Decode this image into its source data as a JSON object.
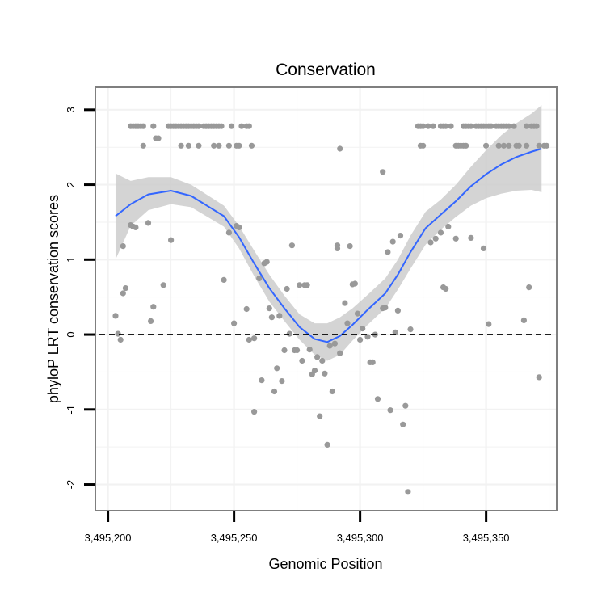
{
  "chart_data": {
    "type": "scatter",
    "title": "Conservation",
    "xlabel": "Genomic Position",
    "ylabel": "phyloP LRT conservation scores",
    "xlim": [
      3495195,
      3495378
    ],
    "ylim": [
      -2.35,
      3.3
    ],
    "x_ticks": [
      3495200,
      3495250,
      3495300,
      3495350
    ],
    "x_tick_labels": [
      "3,495,200",
      "3,495,250",
      "3,495,300",
      "3,495,350"
    ],
    "y_ticks": [
      -2,
      -1,
      0,
      1,
      2,
      3
    ],
    "y_tick_labels": [
      "-2",
      "-1",
      "0",
      "1",
      "2",
      "3"
    ],
    "reference_line": {
      "y": 0,
      "style": "dashed",
      "color": "#000000"
    },
    "grid": true,
    "colors": {
      "points": "#999999",
      "smooth": "#3366ff",
      "band": "#cccccc",
      "panel_border": "#7f7f7f",
      "grid": "#f2f2f2"
    },
    "points": [
      [
        3495209,
        2.78
      ],
      [
        3495210,
        2.78
      ],
      [
        3495211,
        2.78
      ],
      [
        3495212,
        2.78
      ],
      [
        3495213,
        2.78
      ],
      [
        3495214,
        2.78
      ],
      [
        3495218,
        2.78
      ],
      [
        3495224,
        2.78
      ],
      [
        3495225,
        2.78
      ],
      [
        3495226,
        2.78
      ],
      [
        3495227,
        2.78
      ],
      [
        3495228,
        2.78
      ],
      [
        3495229,
        2.78
      ],
      [
        3495230,
        2.78
      ],
      [
        3495231,
        2.78
      ],
      [
        3495232,
        2.78
      ],
      [
        3495233,
        2.78
      ],
      [
        3495234,
        2.78
      ],
      [
        3495235,
        2.78
      ],
      [
        3495236,
        2.78
      ],
      [
        3495238,
        2.78
      ],
      [
        3495239,
        2.78
      ],
      [
        3495240,
        2.78
      ],
      [
        3495241,
        2.78
      ],
      [
        3495242,
        2.78
      ],
      [
        3495243,
        2.78
      ],
      [
        3495244,
        2.78
      ],
      [
        3495245,
        2.78
      ],
      [
        3495249,
        2.78
      ],
      [
        3495253,
        2.78
      ],
      [
        3495255,
        2.78
      ],
      [
        3495256,
        2.78
      ],
      [
        3495214,
        2.52
      ],
      [
        3495229,
        2.52
      ],
      [
        3495232,
        2.52
      ],
      [
        3495236,
        2.52
      ],
      [
        3495242,
        2.52
      ],
      [
        3495244,
        2.52
      ],
      [
        3495248,
        2.52
      ],
      [
        3495251,
        2.52
      ],
      [
        3495252,
        2.52
      ],
      [
        3495257,
        2.52
      ],
      [
        3495219,
        2.62
      ],
      [
        3495220,
        2.62
      ],
      [
        3495323,
        2.78
      ],
      [
        3495324,
        2.78
      ],
      [
        3495325,
        2.78
      ],
      [
        3495327,
        2.78
      ],
      [
        3495329,
        2.78
      ],
      [
        3495332,
        2.78
      ],
      [
        3495333,
        2.78
      ],
      [
        3495334,
        2.78
      ],
      [
        3495336,
        2.78
      ],
      [
        3495341,
        2.78
      ],
      [
        3495342,
        2.78
      ],
      [
        3495343,
        2.78
      ],
      [
        3495344,
        2.78
      ],
      [
        3495346,
        2.78
      ],
      [
        3495347,
        2.78
      ],
      [
        3495348,
        2.78
      ],
      [
        3495349,
        2.78
      ],
      [
        3495350,
        2.78
      ],
      [
        3495351,
        2.78
      ],
      [
        3495352,
        2.78
      ],
      [
        3495354,
        2.78
      ],
      [
        3495355,
        2.78
      ],
      [
        3495356,
        2.78
      ],
      [
        3495357,
        2.78
      ],
      [
        3495358,
        2.78
      ],
      [
        3495359,
        2.78
      ],
      [
        3495361,
        2.78
      ],
      [
        3495366,
        2.78
      ],
      [
        3495368,
        2.78
      ],
      [
        3495369,
        2.78
      ],
      [
        3495370,
        2.78
      ],
      [
        3495324,
        2.52
      ],
      [
        3495325,
        2.52
      ],
      [
        3495338,
        2.52
      ],
      [
        3495339,
        2.52
      ],
      [
        3495340,
        2.52
      ],
      [
        3495341,
        2.52
      ],
      [
        3495342,
        2.52
      ],
      [
        3495350,
        2.52
      ],
      [
        3495355,
        2.52
      ],
      [
        3495357,
        2.52
      ],
      [
        3495359,
        2.52
      ],
      [
        3495362,
        2.52
      ],
      [
        3495363,
        2.52
      ],
      [
        3495366,
        2.52
      ],
      [
        3495371,
        2.52
      ],
      [
        3495373,
        2.52
      ],
      [
        3495374,
        2.52
      ],
      [
        3495292,
        2.48
      ],
      [
        3495309,
        2.17
      ],
      [
        3495206,
        1.18
      ],
      [
        3495209,
        1.46
      ],
      [
        3495210,
        1.44
      ],
      [
        3495211,
        1.43
      ],
      [
        3495216,
        1.49
      ],
      [
        3495222,
        0.66
      ],
      [
        3495225,
        1.26
      ],
      [
        3495206,
        0.55
      ],
      [
        3495207,
        0.62
      ],
      [
        3495218,
        0.37
      ],
      [
        3495217,
        0.18
      ],
      [
        3495203,
        0.25
      ],
      [
        3495204,
        0.01
      ],
      [
        3495205,
        -0.07
      ],
      [
        3495246,
        0.73
      ],
      [
        3495248,
        1.36
      ],
      [
        3495250,
        0.15
      ],
      [
        3495251,
        1.45
      ],
      [
        3495252,
        1.43
      ],
      [
        3495255,
        0.34
      ],
      [
        3495258,
        -0.05
      ],
      [
        3495260,
        0.75
      ],
      [
        3495261,
        -0.61
      ],
      [
        3495262,
        0.95
      ],
      [
        3495263,
        0.97
      ],
      [
        3495264,
        0.35
      ],
      [
        3495265,
        0.23
      ],
      [
        3495266,
        -0.76
      ],
      [
        3495267,
        -0.45
      ],
      [
        3495268,
        0.25
      ],
      [
        3495269,
        -0.62
      ],
      [
        3495270,
        -0.21
      ],
      [
        3495271,
        0.61
      ],
      [
        3495272,
        0.01
      ],
      [
        3495273,
        1.19
      ],
      [
        3495274,
        -0.21
      ],
      [
        3495275,
        -0.21
      ],
      [
        3495276,
        0.66
      ],
      [
        3495277,
        -0.35
      ],
      [
        3495278,
        0.66
      ],
      [
        3495279,
        0.66
      ],
      [
        3495280,
        -0.2
      ],
      [
        3495281,
        -0.53
      ],
      [
        3495282,
        -0.48
      ],
      [
        3495283,
        -0.3
      ],
      [
        3495284,
        -1.09
      ],
      [
        3495285,
        -0.35
      ],
      [
        3495286,
        -0.52
      ],
      [
        3495287,
        -1.47
      ],
      [
        3495288,
        -0.15
      ],
      [
        3495289,
        -0.76
      ],
      [
        3495290,
        -0.12
      ],
      [
        3495291,
        1.19
      ],
      [
        3495291,
        1.15
      ],
      [
        3495292,
        -0.25
      ],
      [
        3495294,
        0.42
      ],
      [
        3495295,
        0.15
      ],
      [
        3495296,
        1.18
      ],
      [
        3495297,
        0.67
      ],
      [
        3495298,
        0.68
      ],
      [
        3495299,
        0.28
      ],
      [
        3495300,
        -0.07
      ],
      [
        3495301,
        0.08
      ],
      [
        3495303,
        -0.03
      ],
      [
        3495304,
        -0.37
      ],
      [
        3495305,
        -0.37
      ],
      [
        3495306,
        0.0
      ],
      [
        3495307,
        -0.86
      ],
      [
        3495309,
        0.35
      ],
      [
        3495310,
        0.36
      ],
      [
        3495311,
        1.1
      ],
      [
        3495312,
        -1.01
      ],
      [
        3495313,
        1.24
      ],
      [
        3495314,
        0.03
      ],
      [
        3495315,
        0.32
      ],
      [
        3495316,
        1.32
      ],
      [
        3495317,
        -1.2
      ],
      [
        3495318,
        -0.95
      ],
      [
        3495319,
        -2.1
      ],
      [
        3495320,
        0.07
      ],
      [
        3495258,
        -1.03
      ],
      [
        3495256,
        -0.07
      ],
      [
        3495328,
        1.23
      ],
      [
        3495330,
        1.28
      ],
      [
        3495332,
        1.36
      ],
      [
        3495333,
        0.63
      ],
      [
        3495334,
        0.61
      ],
      [
        3495335,
        1.44
      ],
      [
        3495338,
        1.28
      ],
      [
        3495344,
        1.29
      ],
      [
        3495349,
        1.15
      ],
      [
        3495351,
        0.14
      ],
      [
        3495365,
        0.19
      ],
      [
        3495367,
        0.63
      ],
      [
        3495371,
        -0.57
      ]
    ],
    "smooth_fit": [
      [
        3495203,
        1.58
      ],
      [
        3495209,
        1.74
      ],
      [
        3495216,
        1.87
      ],
      [
        3495225,
        1.92
      ],
      [
        3495233,
        1.85
      ],
      [
        3495246,
        1.58
      ],
      [
        3495252,
        1.3
      ],
      [
        3495258,
        0.95
      ],
      [
        3495264,
        0.62
      ],
      [
        3495270,
        0.35
      ],
      [
        3495276,
        0.1
      ],
      [
        3495282,
        -0.06
      ],
      [
        3495287,
        -0.1
      ],
      [
        3495292,
        -0.02
      ],
      [
        3495297,
        0.13
      ],
      [
        3495303,
        0.33
      ],
      [
        3495310,
        0.55
      ],
      [
        3495315,
        0.8
      ],
      [
        3495320,
        1.1
      ],
      [
        3495326,
        1.42
      ],
      [
        3495332,
        1.6
      ],
      [
        3495338,
        1.78
      ],
      [
        3495344,
        1.98
      ],
      [
        3495350,
        2.14
      ],
      [
        3495356,
        2.27
      ],
      [
        3495362,
        2.37
      ],
      [
        3495368,
        2.44
      ],
      [
        3495372,
        2.48
      ]
    ],
    "smooth_lower": [
      [
        3495203,
        1.0
      ],
      [
        3495209,
        1.45
      ],
      [
        3495216,
        1.66
      ],
      [
        3495225,
        1.74
      ],
      [
        3495233,
        1.7
      ],
      [
        3495246,
        1.44
      ],
      [
        3495252,
        1.15
      ],
      [
        3495258,
        0.78
      ],
      [
        3495264,
        0.44
      ],
      [
        3495270,
        0.18
      ],
      [
        3495276,
        -0.07
      ],
      [
        3495282,
        -0.27
      ],
      [
        3495287,
        -0.35
      ],
      [
        3495292,
        -0.27
      ],
      [
        3495297,
        -0.08
      ],
      [
        3495303,
        0.13
      ],
      [
        3495310,
        0.35
      ],
      [
        3495315,
        0.6
      ],
      [
        3495320,
        0.88
      ],
      [
        3495326,
        1.2
      ],
      [
        3495332,
        1.4
      ],
      [
        3495338,
        1.57
      ],
      [
        3495344,
        1.72
      ],
      [
        3495350,
        1.82
      ],
      [
        3495356,
        1.88
      ],
      [
        3495362,
        1.92
      ],
      [
        3495368,
        1.93
      ],
      [
        3495372,
        1.9
      ]
    ],
    "smooth_upper": [
      [
        3495203,
        2.15
      ],
      [
        3495209,
        2.05
      ],
      [
        3495216,
        2.1
      ],
      [
        3495225,
        2.1
      ],
      [
        3495233,
        2.0
      ],
      [
        3495246,
        1.72
      ],
      [
        3495252,
        1.45
      ],
      [
        3495258,
        1.12
      ],
      [
        3495264,
        0.8
      ],
      [
        3495270,
        0.52
      ],
      [
        3495276,
        0.27
      ],
      [
        3495282,
        0.15
      ],
      [
        3495287,
        0.15
      ],
      [
        3495292,
        0.23
      ],
      [
        3495297,
        0.35
      ],
      [
        3495303,
        0.53
      ],
      [
        3495310,
        0.75
      ],
      [
        3495315,
        1.0
      ],
      [
        3495320,
        1.32
      ],
      [
        3495326,
        1.64
      ],
      [
        3495332,
        1.8
      ],
      [
        3495338,
        2.0
      ],
      [
        3495344,
        2.24
      ],
      [
        3495350,
        2.46
      ],
      [
        3495356,
        2.66
      ],
      [
        3495362,
        2.82
      ],
      [
        3495368,
        2.95
      ],
      [
        3495372,
        3.06
      ]
    ]
  }
}
